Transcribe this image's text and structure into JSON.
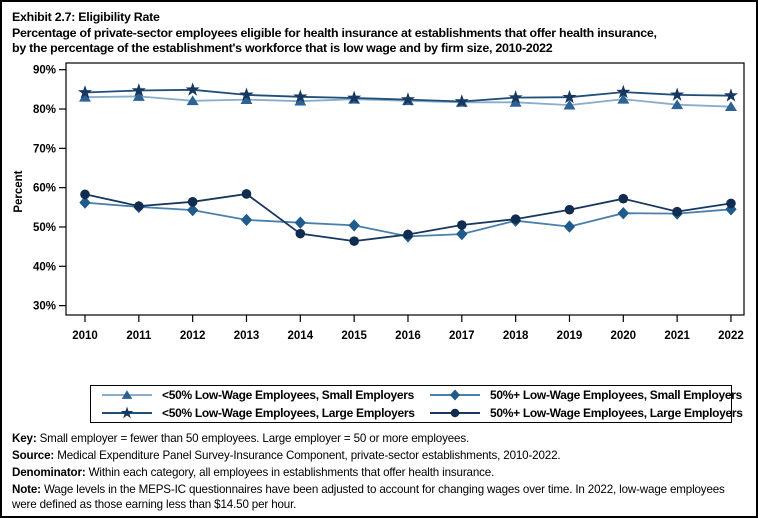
{
  "header": {
    "title": "Exhibit 2.7: Eligibility Rate",
    "subtitle_line1": "Percentage of private-sector employees eligible for health insurance at establishments that offer health insurance,",
    "subtitle_line2": "by the percentage of the establishment's workforce that is low wage and by firm size, 2010-2022"
  },
  "chart_data": {
    "type": "line",
    "title": "Exhibit 2.7: Eligibility Rate",
    "xlabel": "",
    "ylabel": "Percent",
    "x": [
      2010,
      2011,
      2012,
      2013,
      2014,
      2015,
      2016,
      2017,
      2018,
      2019,
      2020,
      2021,
      2022
    ],
    "ylim": [
      27.5,
      91.7
    ],
    "yticks": [
      30,
      40,
      50,
      60,
      70,
      80,
      90
    ],
    "ytick_suffix": "%",
    "grid": false,
    "legend_position": "bottom-box",
    "series": [
      {
        "name": "<50% Low-Wage Employees, Small Employers",
        "marker": "triangle",
        "marker_color": "#2d6294",
        "line_color": "#8aadcb",
        "values": [
          83.0,
          83.2,
          82.1,
          82.4,
          82.0,
          82.5,
          82.1,
          81.7,
          81.7,
          81.0,
          82.5,
          81.1,
          80.6
        ]
      },
      {
        "name": "<50% Low-Wage Employees, Large Employers",
        "marker": "star",
        "marker_color": "#17375e",
        "line_color": "#1f4e79",
        "values": [
          84.2,
          84.7,
          84.9,
          83.6,
          83.1,
          82.8,
          82.4,
          81.9,
          82.9,
          83.0,
          84.3,
          83.6,
          83.4
        ]
      },
      {
        "name": "50%+ Low-Wage Employees, Small Employers",
        "marker": "diamond",
        "marker_color": "#1f5c8b",
        "line_color": "#4a80ab",
        "values": [
          56.2,
          55.1,
          54.3,
          51.8,
          51.1,
          50.4,
          47.6,
          48.2,
          51.6,
          50.1,
          53.5,
          53.4,
          54.5
        ]
      },
      {
        "name": "50%+ Low-Wage Employees, Large Employers",
        "marker": "circle",
        "marker_color": "#102c4e",
        "line_color": "#17375e",
        "values": [
          58.3,
          55.3,
          56.4,
          58.4,
          48.3,
          46.4,
          48.1,
          50.5,
          52.0,
          54.4,
          57.2,
          53.9,
          56.0
        ]
      }
    ]
  },
  "legend": {
    "items": [
      {
        "series_index": 0
      },
      {
        "series_index": 2
      },
      {
        "series_index": 1
      },
      {
        "series_index": 3
      }
    ]
  },
  "footnotes": [
    {
      "label": "Key:",
      "text": " Small employer = fewer than 50 employees. Large employer = 50 or more employees."
    },
    {
      "label": "Source:",
      "text": " Medical Expenditure Panel Survey-Insurance Component, private-sector establishments, 2010-2022."
    },
    {
      "label": "Denominator:",
      "text": " Within each category, all employees in establishments that offer health insurance."
    },
    {
      "label": "Note:",
      "text": " Wage levels in the MEPS-IC questionnaires have been adjusted to account for changing wages over time. In 2022, low-wage employees were defined as those earning less than $14.50 per hour."
    }
  ]
}
